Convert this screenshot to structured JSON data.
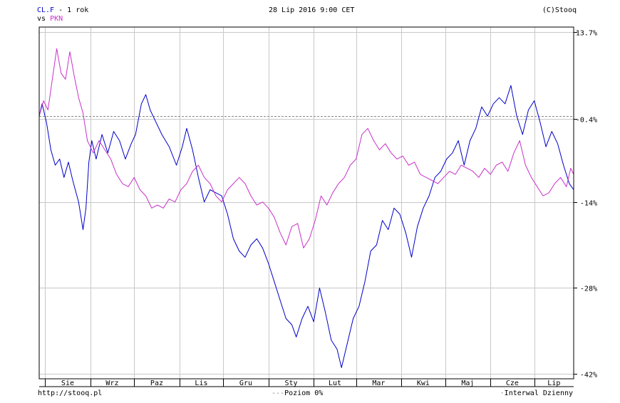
{
  "header": {
    "series_a_label": "CL.F",
    "period_label": "- 1 rok",
    "vs_label": "vs",
    "series_b_label": "PKN",
    "timestamp": "28 Lip 2016 9:00 CET",
    "copyright": "(C)Stooq"
  },
  "footer": {
    "url": "http://stooq.pl",
    "level_label": "Poziom 0%",
    "interval_label": "Interwal Dzienny"
  },
  "colors": {
    "series_a": "#0000c8",
    "series_b": "#c832c8",
    "grid": "#c8c8c8",
    "frame": "#000000"
  },
  "chart_data": {
    "type": "line",
    "y_unit": "%",
    "ylim": [
      -42,
      13.7
    ],
    "y_ticks": [
      "13.7%",
      "-0.4%",
      "-14%",
      "-28%",
      "-42%"
    ],
    "y_tick_values": [
      13.7,
      -0.4,
      -14,
      -28,
      -42
    ],
    "reference_level": 0,
    "grid": true,
    "x_ticks": [
      "Sie",
      "Wrz",
      "Paz",
      "Lis",
      "Gru",
      "Sty",
      "Lut",
      "Mar",
      "Kwi",
      "Maj",
      "Cze",
      "Lip"
    ],
    "x_start": "2015-07-28",
    "x_end": "2016-07-28",
    "series": [
      {
        "name": "CL.F",
        "color": "#0000c8",
        "points": [
          [
            "2015-07-28",
            0.0
          ],
          [
            "2015-07-30",
            2.0
          ],
          [
            "2015-08-02",
            -1.0
          ],
          [
            "2015-08-05",
            -5.5
          ],
          [
            "2015-08-08",
            -8.0
          ],
          [
            "2015-08-11",
            -7.0
          ],
          [
            "2015-08-14",
            -10.0
          ],
          [
            "2015-08-17",
            -7.5
          ],
          [
            "2015-08-20",
            -10.5
          ],
          [
            "2015-08-24",
            -14.0
          ],
          [
            "2015-08-27",
            -18.5
          ],
          [
            "2015-08-29",
            -15.0
          ],
          [
            "2015-08-31",
            -7.5
          ],
          [
            "2015-09-02",
            -4.0
          ],
          [
            "2015-09-05",
            -7.0
          ],
          [
            "2015-09-09",
            -3.0
          ],
          [
            "2015-09-13",
            -6.0
          ],
          [
            "2015-09-17",
            -2.5
          ],
          [
            "2015-09-21",
            -4.0
          ],
          [
            "2015-09-25",
            -7.0
          ],
          [
            "2015-09-29",
            -4.5
          ],
          [
            "2015-10-02",
            -3.0
          ],
          [
            "2015-10-06",
            2.0
          ],
          [
            "2015-10-09",
            3.5
          ],
          [
            "2015-10-12",
            1.0
          ],
          [
            "2015-10-16",
            -1.0
          ],
          [
            "2015-10-20",
            -3.0
          ],
          [
            "2015-10-25",
            -5.0
          ],
          [
            "2015-10-30",
            -8.0
          ],
          [
            "2015-11-03",
            -5.0
          ],
          [
            "2015-11-06",
            -2.0
          ],
          [
            "2015-11-10",
            -5.5
          ],
          [
            "2015-11-14",
            -10.0
          ],
          [
            "2015-11-18",
            -14.0
          ],
          [
            "2015-11-22",
            -12.0
          ],
          [
            "2015-11-26",
            -12.5
          ],
          [
            "2015-11-30",
            -13.0
          ],
          [
            "2015-12-04",
            -16.0
          ],
          [
            "2015-12-08",
            -20.0
          ],
          [
            "2015-12-12",
            -22.0
          ],
          [
            "2015-12-16",
            -23.0
          ],
          [
            "2015-12-20",
            -21.0
          ],
          [
            "2015-12-24",
            -20.0
          ],
          [
            "2015-12-28",
            -21.5
          ],
          [
            "2016-01-01",
            -24.0
          ],
          [
            "2016-01-05",
            -27.0
          ],
          [
            "2016-01-09",
            -30.0
          ],
          [
            "2016-01-13",
            -33.0
          ],
          [
            "2016-01-17",
            -34.0
          ],
          [
            "2016-01-20",
            -36.0
          ],
          [
            "2016-01-24",
            -33.0
          ],
          [
            "2016-01-28",
            -31.0
          ],
          [
            "2016-02-01",
            -33.5
          ],
          [
            "2016-02-05",
            -28.0
          ],
          [
            "2016-02-09",
            -32.0
          ],
          [
            "2016-02-13",
            -36.5
          ],
          [
            "2016-02-17",
            -38.0
          ],
          [
            "2016-02-20",
            -41.0
          ],
          [
            "2016-02-24",
            -37.0
          ],
          [
            "2016-02-28",
            -33.0
          ],
          [
            "2016-03-03",
            -31.0
          ],
          [
            "2016-03-07",
            -27.0
          ],
          [
            "2016-03-11",
            -22.0
          ],
          [
            "2016-03-15",
            -21.0
          ],
          [
            "2016-03-19",
            -17.0
          ],
          [
            "2016-03-23",
            -18.5
          ],
          [
            "2016-03-27",
            -15.0
          ],
          [
            "2016-03-31",
            -16.0
          ],
          [
            "2016-04-04",
            -19.0
          ],
          [
            "2016-04-08",
            -23.0
          ],
          [
            "2016-04-12",
            -18.0
          ],
          [
            "2016-04-16",
            -15.0
          ],
          [
            "2016-04-20",
            -13.0
          ],
          [
            "2016-04-24",
            -10.0
          ],
          [
            "2016-04-28",
            -9.0
          ],
          [
            "2016-05-02",
            -7.0
          ],
          [
            "2016-05-06",
            -6.0
          ],
          [
            "2016-05-10",
            -4.0
          ],
          [
            "2016-05-14",
            -8.0
          ],
          [
            "2016-05-18",
            -4.0
          ],
          [
            "2016-05-22",
            -2.0
          ],
          [
            "2016-05-26",
            1.5
          ],
          [
            "2016-05-30",
            0.0
          ],
          [
            "2016-06-03",
            2.0
          ],
          [
            "2016-06-07",
            3.0
          ],
          [
            "2016-06-11",
            2.0
          ],
          [
            "2016-06-15",
            5.0
          ],
          [
            "2016-06-19",
            0.0
          ],
          [
            "2016-06-23",
            -3.0
          ],
          [
            "2016-06-27",
            1.0
          ],
          [
            "2016-07-01",
            2.5
          ],
          [
            "2016-07-05",
            -1.0
          ],
          [
            "2016-07-09",
            -5.0
          ],
          [
            "2016-07-13",
            -2.5
          ],
          [
            "2016-07-17",
            -4.5
          ],
          [
            "2016-07-21",
            -8.0
          ],
          [
            "2016-07-25",
            -11.0
          ],
          [
            "2016-07-28",
            -12.0
          ]
        ]
      },
      {
        "name": "PKN",
        "color": "#c832c8",
        "points": [
          [
            "2015-07-28",
            0.0
          ],
          [
            "2015-07-31",
            2.5
          ],
          [
            "2015-08-03",
            1.0
          ],
          [
            "2015-08-06",
            6.0
          ],
          [
            "2015-08-09",
            11.0
          ],
          [
            "2015-08-12",
            7.0
          ],
          [
            "2015-08-15",
            6.0
          ],
          [
            "2015-08-18",
            10.5
          ],
          [
            "2015-08-21",
            6.5
          ],
          [
            "2015-08-24",
            3.0
          ],
          [
            "2015-08-27",
            0.5
          ],
          [
            "2015-08-30",
            -4.0
          ],
          [
            "2015-09-03",
            -6.0
          ],
          [
            "2015-09-07",
            -4.0
          ],
          [
            "2015-09-11",
            -5.5
          ],
          [
            "2015-09-15",
            -7.0
          ],
          [
            "2015-09-19",
            -9.5
          ],
          [
            "2015-09-23",
            -11.0
          ],
          [
            "2015-09-27",
            -11.5
          ],
          [
            "2015-10-01",
            -10.0
          ],
          [
            "2015-10-05",
            -12.0
          ],
          [
            "2015-10-09",
            -13.0
          ],
          [
            "2015-10-13",
            -15.0
          ],
          [
            "2015-10-17",
            -14.5
          ],
          [
            "2015-10-21",
            -15.0
          ],
          [
            "2015-10-25",
            -13.5
          ],
          [
            "2015-10-29",
            -14.0
          ],
          [
            "2015-11-02",
            -12.0
          ],
          [
            "2015-11-06",
            -11.0
          ],
          [
            "2015-11-10",
            -9.0
          ],
          [
            "2015-11-14",
            -8.0
          ],
          [
            "2015-11-18",
            -10.0
          ],
          [
            "2015-11-22",
            -11.0
          ],
          [
            "2015-11-26",
            -13.0
          ],
          [
            "2015-11-30",
            -14.0
          ],
          [
            "2015-12-04",
            -12.0
          ],
          [
            "2015-12-08",
            -11.0
          ],
          [
            "2015-12-12",
            -10.0
          ],
          [
            "2015-12-16",
            -11.0
          ],
          [
            "2015-12-20",
            -13.0
          ],
          [
            "2015-12-24",
            -14.5
          ],
          [
            "2015-12-28",
            -14.0
          ],
          [
            "2016-01-01",
            -15.0
          ],
          [
            "2016-01-05",
            -16.5
          ],
          [
            "2016-01-09",
            -19.0
          ],
          [
            "2016-01-13",
            -21.0
          ],
          [
            "2016-01-17",
            -18.0
          ],
          [
            "2016-01-21",
            -17.5
          ],
          [
            "2016-01-25",
            -21.5
          ],
          [
            "2016-01-29",
            -20.0
          ],
          [
            "2016-02-02",
            -17.0
          ],
          [
            "2016-02-06",
            -13.0
          ],
          [
            "2016-02-10",
            -14.5
          ],
          [
            "2016-02-14",
            -12.5
          ],
          [
            "2016-02-18",
            -11.0
          ],
          [
            "2016-02-22",
            -10.0
          ],
          [
            "2016-02-26",
            -8.0
          ],
          [
            "2016-03-01",
            -7.0
          ],
          [
            "2016-03-05",
            -3.0
          ],
          [
            "2016-03-09",
            -2.0
          ],
          [
            "2016-03-13",
            -4.0
          ],
          [
            "2016-03-17",
            -5.5
          ],
          [
            "2016-03-21",
            -4.5
          ],
          [
            "2016-03-25",
            -6.0
          ],
          [
            "2016-03-29",
            -7.0
          ],
          [
            "2016-04-02",
            -6.5
          ],
          [
            "2016-04-06",
            -8.0
          ],
          [
            "2016-04-10",
            -7.5
          ],
          [
            "2016-04-14",
            -9.5
          ],
          [
            "2016-04-18",
            -10.0
          ],
          [
            "2016-04-22",
            -10.5
          ],
          [
            "2016-04-26",
            -11.0
          ],
          [
            "2016-04-30",
            -10.0
          ],
          [
            "2016-05-04",
            -9.0
          ],
          [
            "2016-05-08",
            -9.5
          ],
          [
            "2016-05-12",
            -8.0
          ],
          [
            "2016-05-16",
            -8.5
          ],
          [
            "2016-05-20",
            -9.0
          ],
          [
            "2016-05-24",
            -10.0
          ],
          [
            "2016-05-28",
            -8.5
          ],
          [
            "2016-06-01",
            -9.5
          ],
          [
            "2016-06-05",
            -8.0
          ],
          [
            "2016-06-09",
            -7.5
          ],
          [
            "2016-06-13",
            -9.0
          ],
          [
            "2016-06-17",
            -6.0
          ],
          [
            "2016-06-21",
            -4.0
          ],
          [
            "2016-06-25",
            -8.0
          ],
          [
            "2016-06-29",
            -10.0
          ],
          [
            "2016-07-03",
            -11.5
          ],
          [
            "2016-07-07",
            -13.0
          ],
          [
            "2016-07-11",
            -12.5
          ],
          [
            "2016-07-15",
            -11.0
          ],
          [
            "2016-07-19",
            -10.0
          ],
          [
            "2016-07-23",
            -11.5
          ],
          [
            "2016-07-26",
            -8.5
          ],
          [
            "2016-07-28",
            -9.5
          ]
        ]
      }
    ]
  }
}
